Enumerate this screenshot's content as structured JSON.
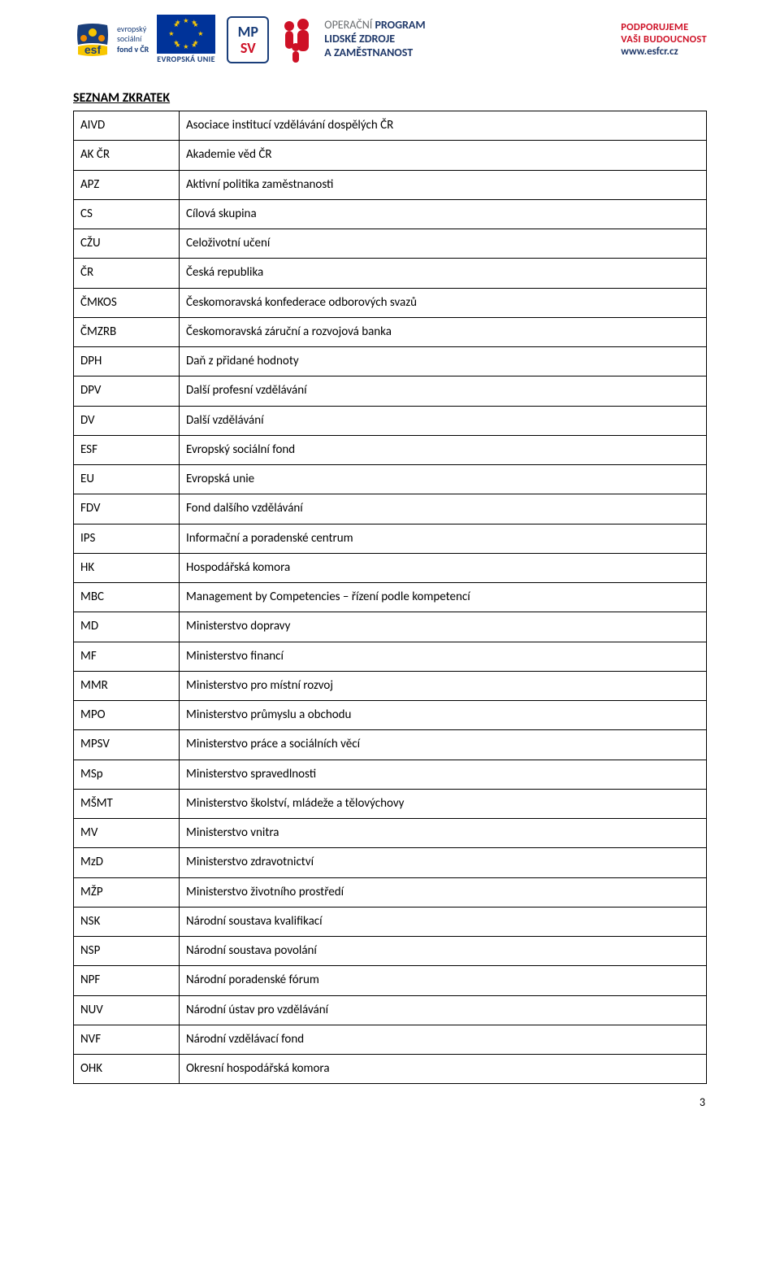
{
  "header": {
    "esf": {
      "lines": [
        "evropský",
        "sociální",
        "fond v ČR"
      ],
      "title": "esf",
      "colors": {
        "blue": "#1a3e7a",
        "yellow": "#f7c600",
        "orange": "#f08a00"
      }
    },
    "eu_label": "EVROPSKÁ UNIE",
    "mpsv": {
      "top": "MP",
      "bottom": "SV"
    },
    "op": {
      "line1_a": "OPERAČNÍ ",
      "line1_b": "PROGRAM",
      "line2": "LIDSKÉ ZDROJE",
      "line3": "A ZAMĚSTNANOST"
    },
    "promo": {
      "line1": "PODPORUJEME",
      "line2": "VAŠI BUDOUCNOST",
      "url": "www.esfcr.cz"
    }
  },
  "section_title": "SEZNAM ZKRATEK",
  "rows": [
    {
      "abbr": "AIVD",
      "desc": "Asociace institucí vzdělávání dospělých ČR"
    },
    {
      "abbr": "AK ČR",
      "desc": "Akademie věd ČR"
    },
    {
      "abbr": "APZ",
      "desc": "Aktivní politika zaměstnanosti"
    },
    {
      "abbr": "CS",
      "desc": "Cílová skupina"
    },
    {
      "abbr": "CŽU",
      "desc": "Celoživotní učení"
    },
    {
      "abbr": "ČR",
      "desc": "Česká republika"
    },
    {
      "abbr": "ČMKOS",
      "desc": "Českomoravská konfederace odborových svazů"
    },
    {
      "abbr": "ČMZRB",
      "desc": "Českomoravská záruční a rozvojová banka"
    },
    {
      "abbr": "DPH",
      "desc": "Daň z přidané hodnoty"
    },
    {
      "abbr": "DPV",
      "desc": "Další profesní vzdělávání"
    },
    {
      "abbr": "DV",
      "desc": "Další vzdělávání"
    },
    {
      "abbr": "ESF",
      "desc": "Evropský sociální fond"
    },
    {
      "abbr": "EU",
      "desc": "Evropská unie"
    },
    {
      "abbr": "FDV",
      "desc": "Fond dalšího vzdělávání"
    },
    {
      "abbr": "IPS",
      "desc": "Informační a poradenské centrum"
    },
    {
      "abbr": "HK",
      "desc": "Hospodářská komora"
    },
    {
      "abbr": "MBC",
      "desc": "Management by Competencies – řízení podle kompetencí"
    },
    {
      "abbr": "MD",
      "desc": "Ministerstvo dopravy"
    },
    {
      "abbr": "MF",
      "desc": "Ministerstvo financí"
    },
    {
      "abbr": "MMR",
      "desc": "Ministerstvo pro místní rozvoj"
    },
    {
      "abbr": "MPO",
      "desc": "Ministerstvo průmyslu a obchodu"
    },
    {
      "abbr": "MPSV",
      "desc": "Ministerstvo práce a sociálních věcí"
    },
    {
      "abbr": "MSp",
      "desc": "Ministerstvo spravedlnosti"
    },
    {
      "abbr": "MŠMT",
      "desc": "Ministerstvo školství, mládeže a tělovýchovy"
    },
    {
      "abbr": "MV",
      "desc": "Ministerstvo vnitra"
    },
    {
      "abbr": "MzD",
      "desc": "Ministerstvo zdravotnictví"
    },
    {
      "abbr": "MŽP",
      "desc": "Ministerstvo životního prostředí"
    },
    {
      "abbr": "NSK",
      "desc": "Národní soustava kvalifikací"
    },
    {
      "abbr": "NSP",
      "desc": "Národní soustava povolání"
    },
    {
      "abbr": "NPF",
      "desc": "Národní poradenské fórum"
    },
    {
      "abbr": "NUV",
      "desc": "Národní ústav pro vzdělávání"
    },
    {
      "abbr": "NVF",
      "desc": "Národní vzdělávací fond"
    },
    {
      "abbr": "OHK",
      "desc": "Okresní hospodářská komora"
    }
  ],
  "page_number": "3",
  "colors": {
    "text": "#000000",
    "border": "#000000",
    "blue": "#1a3e7a",
    "red": "#ce1126",
    "eu_bg": "#003399",
    "eu_star": "#ffcc00"
  }
}
